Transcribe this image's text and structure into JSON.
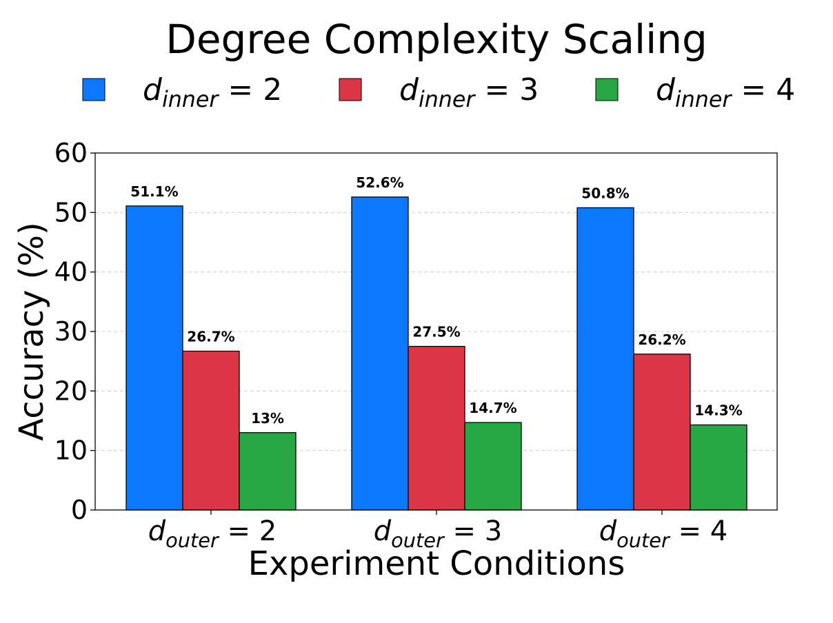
{
  "chart_data": {
    "type": "bar",
    "title": "Degree Complexity Scaling",
    "xlabel": "Experiment Conditions",
    "ylabel": "Accuracy (%)",
    "ylim": [
      0,
      60
    ],
    "yticks": [
      "0",
      "10",
      "20",
      "30",
      "40",
      "50",
      "60"
    ],
    "categories": [
      {
        "var": "d",
        "sub": "outer",
        "eq": " = 2"
      },
      {
        "var": "d",
        "sub": "outer",
        "eq": " = 3"
      },
      {
        "var": "d",
        "sub": "outer",
        "eq": " = 4"
      }
    ],
    "series": [
      {
        "var": "d",
        "sub": "inner",
        "eq": " = 2",
        "color": "#0b78fe",
        "values": [
          51.1,
          52.6,
          50.8
        ],
        "labels": [
          "51.1%",
          "52.6%",
          "50.8%"
        ]
      },
      {
        "var": "d",
        "sub": "inner",
        "eq": " = 3",
        "color": "#dc3545",
        "values": [
          26.7,
          27.5,
          26.2
        ],
        "labels": [
          "26.7%",
          "27.5%",
          "26.2%"
        ]
      },
      {
        "var": "d",
        "sub": "inner",
        "eq": " = 4",
        "color": "#28a745",
        "values": [
          13,
          14.7,
          14.3
        ],
        "labels": [
          "13%",
          "14.7%",
          "14.3%"
        ]
      }
    ],
    "grid": "horizontal dashed",
    "legend": "top"
  }
}
